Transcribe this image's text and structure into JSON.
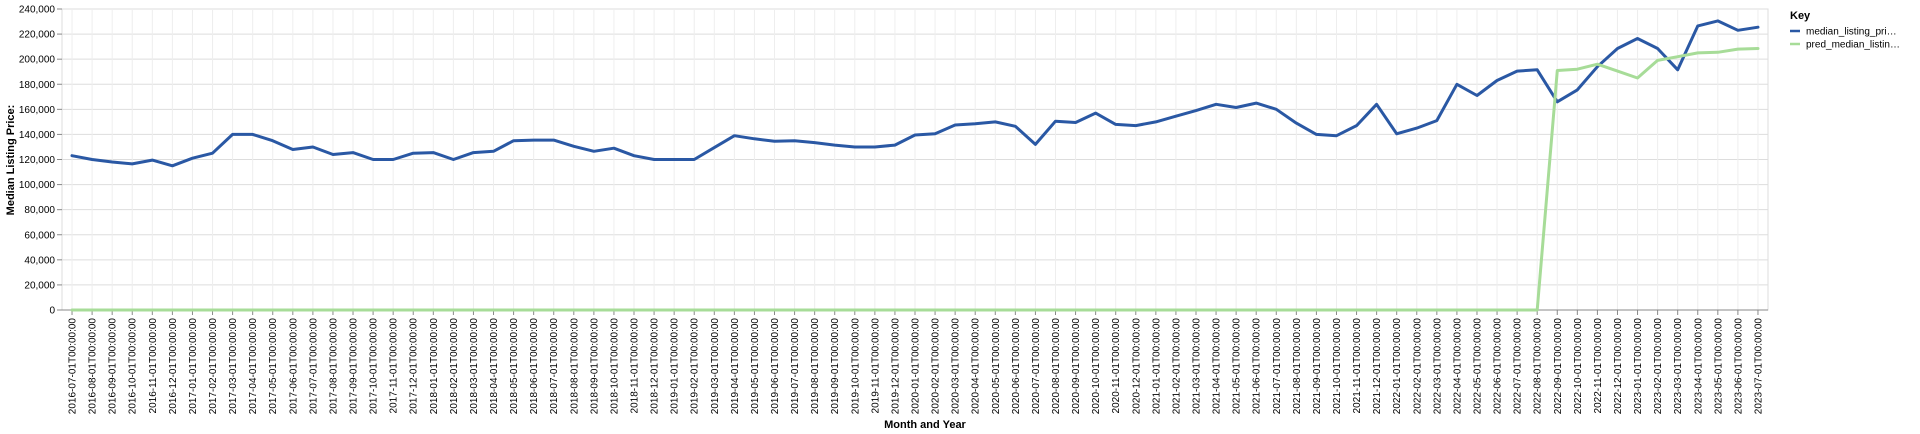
{
  "chart_data": {
    "type": "line",
    "xlabel": "Month and Year",
    "ylabel": "Median Listing Price:",
    "ylim": [
      0,
      240000
    ],
    "y_ticks": [
      "0",
      "20,000",
      "40,000",
      "60,000",
      "80,000",
      "100,000",
      "120,000",
      "140,000",
      "160,000",
      "180,000",
      "200,000",
      "220,000",
      "240,000"
    ],
    "grid": true,
    "legend_position": "right",
    "legend_title": "Key",
    "x": [
      "2016-07-01T00:00:00",
      "2016-08-01T00:00:00",
      "2016-09-01T00:00:00",
      "2016-10-01T00:00:00",
      "2016-11-01T00:00:00",
      "2016-12-01T00:00:00",
      "2017-01-01T00:00:00",
      "2017-02-01T00:00:00",
      "2017-03-01T00:00:00",
      "2017-04-01T00:00:00",
      "2017-05-01T00:00:00",
      "2017-06-01T00:00:00",
      "2017-07-01T00:00:00",
      "2017-08-01T00:00:00",
      "2017-09-01T00:00:00",
      "2017-10-01T00:00:00",
      "2017-11-01T00:00:00",
      "2017-12-01T00:00:00",
      "2018-01-01T00:00:00",
      "2018-02-01T00:00:00",
      "2018-03-01T00:00:00",
      "2018-04-01T00:00:00",
      "2018-05-01T00:00:00",
      "2018-06-01T00:00:00",
      "2018-07-01T00:00:00",
      "2018-08-01T00:00:00",
      "2018-09-01T00:00:00",
      "2018-10-01T00:00:00",
      "2018-11-01T00:00:00",
      "2018-12-01T00:00:00",
      "2019-01-01T00:00:00",
      "2019-02-01T00:00:00",
      "2019-03-01T00:00:00",
      "2019-04-01T00:00:00",
      "2019-05-01T00:00:00",
      "2019-06-01T00:00:00",
      "2019-07-01T00:00:00",
      "2019-08-01T00:00:00",
      "2019-09-01T00:00:00",
      "2019-10-01T00:00:00",
      "2019-11-01T00:00:00",
      "2019-12-01T00:00:00",
      "2020-01-01T00:00:00",
      "2020-02-01T00:00:00",
      "2020-03-01T00:00:00",
      "2020-04-01T00:00:00",
      "2020-05-01T00:00:00",
      "2020-06-01T00:00:00",
      "2020-07-01T00:00:00",
      "2020-08-01T00:00:00",
      "2020-09-01T00:00:00",
      "2020-10-01T00:00:00",
      "2020-11-01T00:00:00",
      "2020-12-01T00:00:00",
      "2021-01-01T00:00:00",
      "2021-02-01T00:00:00",
      "2021-03-01T00:00:00",
      "2021-04-01T00:00:00",
      "2021-05-01T00:00:00",
      "2021-06-01T00:00:00",
      "2021-07-01T00:00:00",
      "2021-08-01T00:00:00",
      "2021-09-01T00:00:00",
      "2021-10-01T00:00:00",
      "2021-11-01T00:00:00",
      "2021-12-01T00:00:00",
      "2022-01-01T00:00:00",
      "2022-02-01T00:00:00",
      "2022-03-01T00:00:00",
      "2022-04-01T00:00:00",
      "2022-05-01T00:00:00",
      "2022-06-01T00:00:00",
      "2022-07-01T00:00:00",
      "2022-08-01T00:00:00",
      "2022-09-01T00:00:00",
      "2022-10-01T00:00:00",
      "2022-11-01T00:00:00",
      "2022-12-01T00:00:00",
      "2023-01-01T00:00:00",
      "2023-02-01T00:00:00",
      "2023-03-01T00:00:00",
      "2023-04-01T00:00:00",
      "2023-05-01T00:00:00",
      "2023-06-01T00:00:00",
      "2023-07-01T00:00:00"
    ],
    "series": [
      {
        "name": "median_listing_pri…",
        "color": "#2a58a4",
        "values": [
          123000,
          120000,
          118000,
          116500,
          119500,
          115000,
          121000,
          125000,
          140000,
          140000,
          135000,
          128000,
          130000,
          124000,
          125500,
          120000,
          120000,
          125000,
          125500,
          120000,
          125500,
          126500,
          135000,
          135500,
          135500,
          130500,
          126500,
          129000,
          123000,
          120000,
          120000,
          120000,
          129500,
          139000,
          136500,
          134500,
          135000,
          133500,
          131500,
          130000,
          130000,
          131500,
          139500,
          140500,
          147500,
          148500,
          150000,
          146500,
          132000,
          150500,
          149500,
          157000,
          148000,
          147000,
          150000,
          154500,
          159000,
          164000,
          161500,
          165000,
          160000,
          149000,
          140000,
          139000,
          147000,
          164000,
          140500,
          145000,
          151000,
          180000,
          171000,
          183000,
          190500,
          191500,
          166000,
          175500,
          194000,
          208500,
          216500,
          208500,
          191500,
          226500,
          230500,
          223000,
          225500
        ]
      },
      {
        "name": "pred_median_listin…",
        "color": "#a7dc98",
        "values": [
          0,
          0,
          0,
          0,
          0,
          0,
          0,
          0,
          0,
          0,
          0,
          0,
          0,
          0,
          0,
          0,
          0,
          0,
          0,
          0,
          0,
          0,
          0,
          0,
          0,
          0,
          0,
          0,
          0,
          0,
          0,
          0,
          0,
          0,
          0,
          0,
          0,
          0,
          0,
          0,
          0,
          0,
          0,
          0,
          0,
          0,
          0,
          0,
          0,
          0,
          0,
          0,
          0,
          0,
          0,
          0,
          0,
          0,
          0,
          0,
          0,
          0,
          0,
          0,
          0,
          0,
          0,
          0,
          0,
          0,
          0,
          0,
          0,
          0,
          191000,
          192000,
          196000,
          190500,
          185000,
          199000,
          202000,
          205000,
          205500,
          208000,
          208500
        ]
      }
    ]
  }
}
